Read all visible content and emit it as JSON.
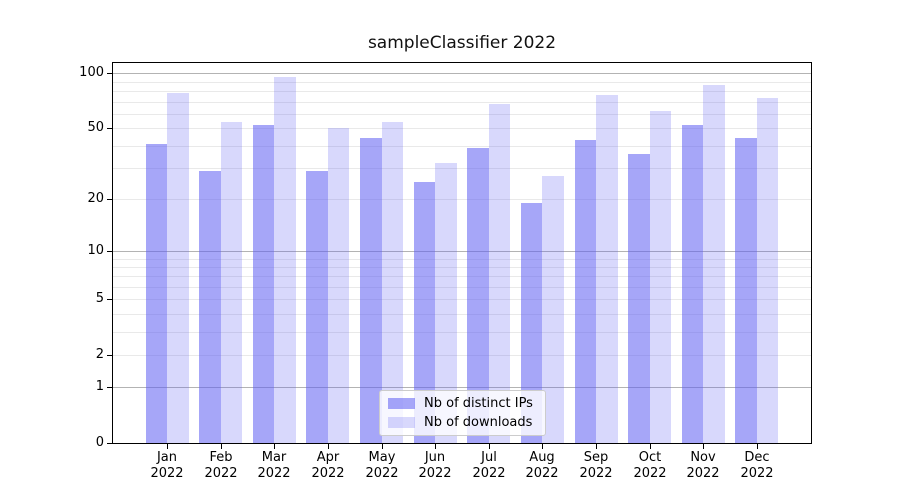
{
  "title": "sampleClassifier 2022",
  "chart_data": {
    "type": "bar",
    "title": "sampleClassifier 2022",
    "categories": [
      "Jan",
      "Feb",
      "Mar",
      "Apr",
      "May",
      "Jun",
      "Jul",
      "Aug",
      "Sep",
      "Oct",
      "Nov",
      "Dec"
    ],
    "year_label": "2022",
    "series": [
      {
        "name": "Nb of distinct IPs",
        "color": "rgba(92,92,242,0.55)",
        "values": [
          41,
          29,
          52,
          29,
          44,
          25,
          39,
          19,
          43,
          36,
          52,
          44
        ]
      },
      {
        "name": "Nb of downloads",
        "color": "rgba(92,92,242,0.24)",
        "values": [
          78,
          54,
          95,
          50,
          54,
          32,
          68,
          27,
          76,
          62,
          86,
          73
        ]
      }
    ],
    "xlabel": "",
    "ylabel": "",
    "yscale": "log1p",
    "ylim": [
      0,
      115
    ],
    "yticks": [
      100,
      50,
      20,
      10,
      5,
      2,
      1,
      0
    ],
    "major_gridlines": [
      1,
      10,
      100
    ],
    "minor_gridlines": [
      2,
      3,
      4,
      5,
      6,
      7,
      8,
      9,
      20,
      30,
      40,
      50,
      60,
      70,
      80,
      90
    ],
    "grid": true,
    "legend_position": "lower center",
    "colors": {
      "major_grid": "#b3b3b3",
      "minor_grid": "#e9e9e9",
      "spine": "#000000",
      "text": "#000000"
    }
  }
}
